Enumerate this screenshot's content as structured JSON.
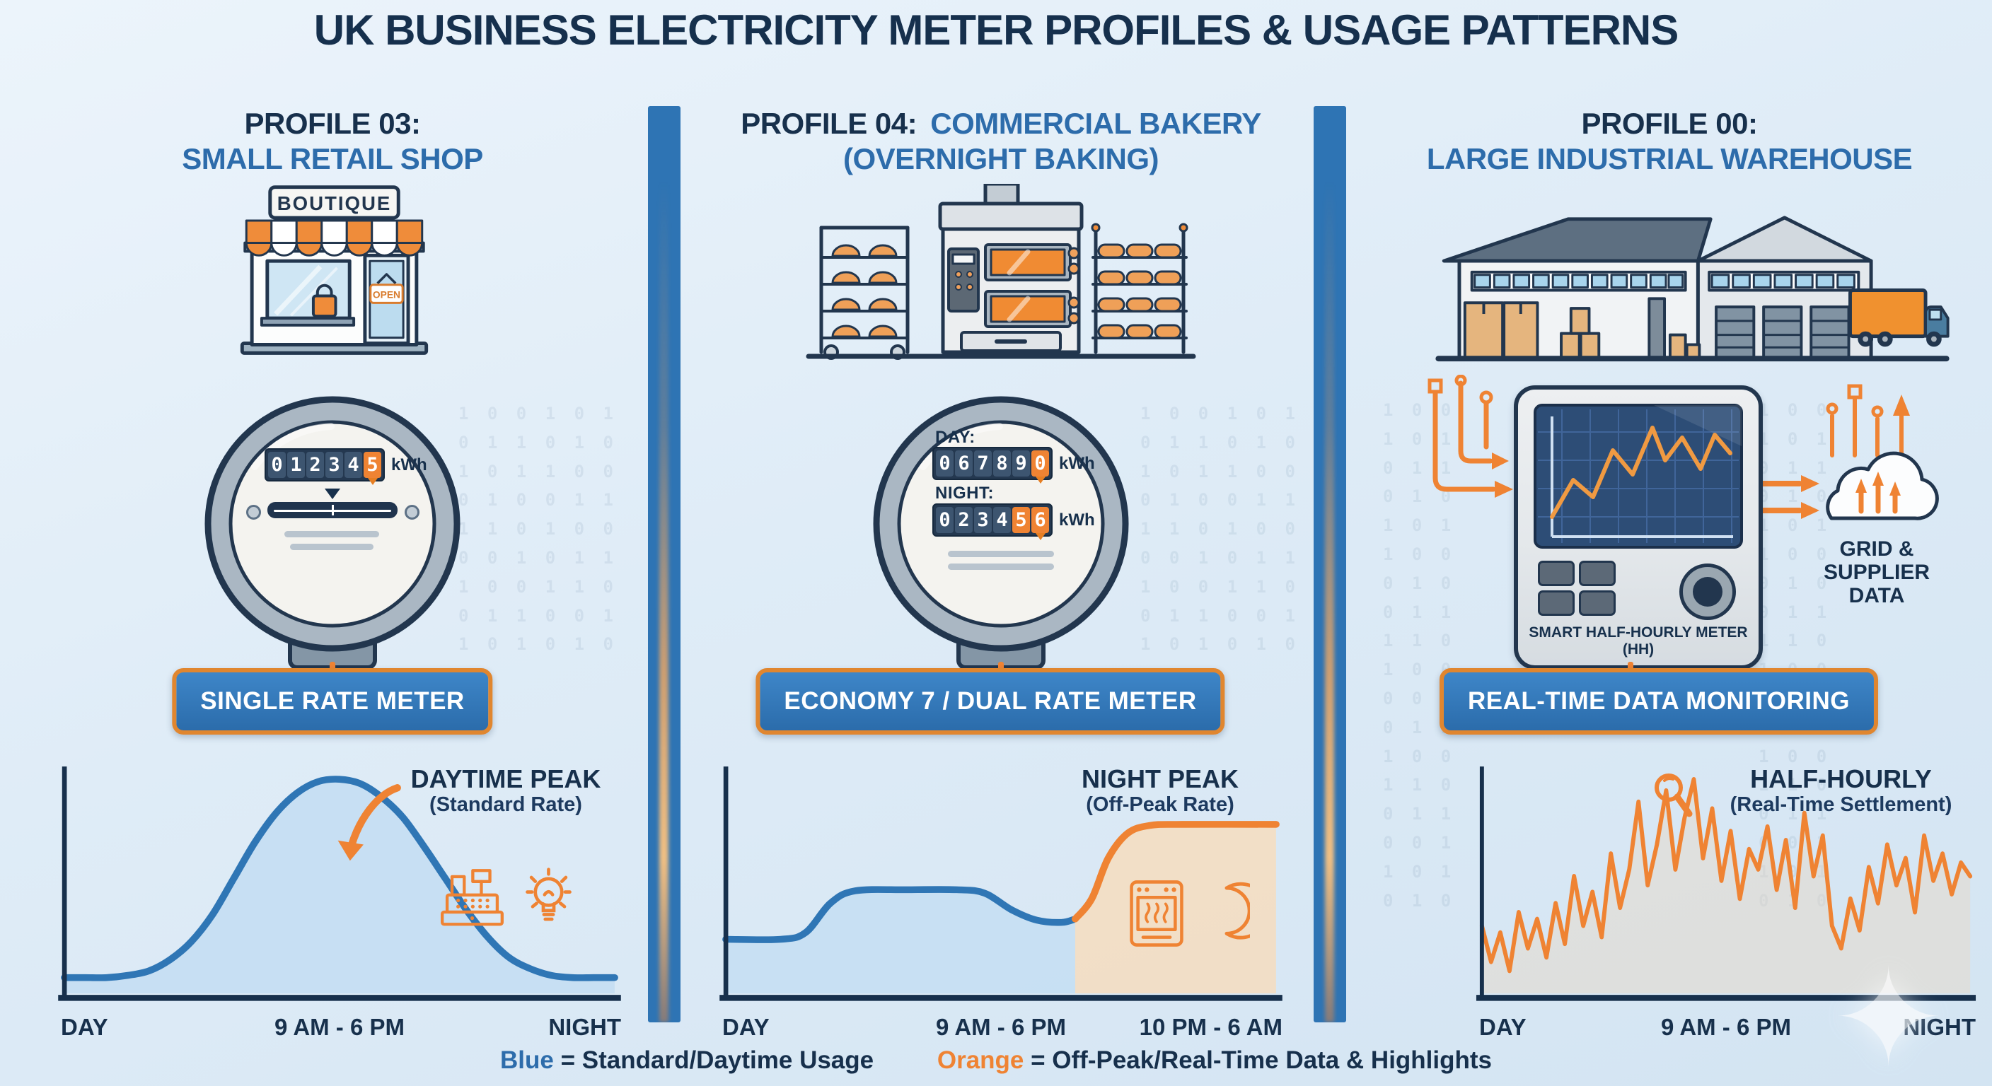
{
  "title": "UK BUSINESS ELECTRICITY METER PROFILES & USAGE PATTERNS",
  "colors": {
    "navy": "#17304c",
    "blue": "#2e74b4",
    "orange": "#ef8333",
    "blue_fill": "#c3ddf2",
    "orange_fill": "#f8dcbc"
  },
  "background": {
    "binary_pattern": "1 0 0 1 0 1\n0 1 1 0 1 0\n1 0 1 1 0 0\n0 1 0 0 1 1\n1 1 0 1 0 0\n0 0 1 0 1 1\n1 0 0 1 1 0\n0 1 1 0 0 1\n1 0 1 0 1 0"
  },
  "watermark": "✦",
  "legend": {
    "blue_word": "Blue",
    "blue_text": "= Standard/Daytime Usage",
    "orange_word": "Orange",
    "orange_text": "= Off-Peak/Real-Time Data & Highlights"
  },
  "columns": [
    {
      "heading": {
        "line1_dark": "PROFILE 03:",
        "line1_blue": "",
        "line2_blue": "SMALL RETAIL SHOP"
      },
      "illustration": {
        "name": "boutique-storefront",
        "sign": "BOUTIQUE",
        "door_sign": "OPEN"
      },
      "meter": {
        "type": "single-rate-analog",
        "unit": "kWh",
        "rows": [
          {
            "label": "",
            "dark_digits": "01234",
            "orange_digits": "5"
          }
        ]
      },
      "badge": "SINGLE RATE METER"
    },
    {
      "heading": {
        "line1_dark": "PROFILE 04:",
        "line1_blue": "COMMERCIAL BAKERY",
        "line2_blue": "(OVERNIGHT BAKING)"
      },
      "illustration": {
        "name": "commercial-bakery-oven"
      },
      "meter": {
        "type": "economy7-dual-rate",
        "unit": "kWh",
        "rows": [
          {
            "label": "DAY:",
            "dark_digits": "06789",
            "orange_digits": "0"
          },
          {
            "label": "NIGHT:",
            "dark_digits": "0234",
            "orange_digits": "56"
          }
        ]
      },
      "badge": "ECONOMY 7 / DUAL RATE METER"
    },
    {
      "heading": {
        "line1_dark": "PROFILE 00:",
        "line1_blue": "",
        "line2_blue": "LARGE INDUSTRIAL WAREHOUSE"
      },
      "illustration": {
        "name": "industrial-warehouse"
      },
      "meter": {
        "type": "smart-half-hourly",
        "label": "SMART HALF-HOURLY METER (HH)"
      },
      "cloud_text": "GRID &\nSUPPLIER\nDATA",
      "badge": "REAL-TIME DATA MONITORING"
    }
  ],
  "chart_data": [
    {
      "type": "area",
      "annotation": "DAYTIME PEAK",
      "annotation_sub": "(Standard Rate)",
      "x_labels": [
        "DAY",
        "9 AM - 6 PM",
        "NIGHT"
      ],
      "ylim": [
        0,
        1
      ],
      "grid": false,
      "series": [
        {
          "name": "Standard/Daytime Usage",
          "color": "#2f76b5",
          "width": 9,
          "smooth": true,
          "fill": "#c3ddf2",
          "fill_opacity": 0.85,
          "values": [
            0.07,
            0.07,
            0.07,
            0.08,
            0.1,
            0.15,
            0.23,
            0.35,
            0.51,
            0.67,
            0.8,
            0.89,
            0.94,
            0.95,
            0.93,
            0.87,
            0.78,
            0.65,
            0.51,
            0.37,
            0.25,
            0.16,
            0.11,
            0.08,
            0.07,
            0.07,
            0.07
          ]
        }
      ]
    },
    {
      "type": "area",
      "annotation": "NIGHT PEAK",
      "annotation_sub": "(Off-Peak Rate)",
      "x_labels": [
        "DAY",
        "9 AM - 6 PM",
        "10 PM - 6 AM"
      ],
      "ylim": [
        0,
        1
      ],
      "grid": false,
      "series": [
        {
          "name": "Daytime usage (standard rate)",
          "color": "#2f76b5",
          "width": 9,
          "smooth": true,
          "fill": "#c3ddf2",
          "fill_opacity": 0.8,
          "points": [
            [
              0,
              0.24
            ],
            [
              0.1,
              0.24
            ],
            [
              0.145,
              0.27
            ],
            [
              0.19,
              0.4
            ],
            [
              0.235,
              0.455
            ],
            [
              0.33,
              0.46
            ],
            [
              0.42,
              0.46
            ],
            [
              0.47,
              0.445
            ],
            [
              0.52,
              0.37
            ],
            [
              0.565,
              0.325
            ],
            [
              0.61,
              0.315
            ],
            [
              0.635,
              0.33
            ]
          ]
        },
        {
          "name": "Night usage (off-peak rate)",
          "color": "#ef8333",
          "width": 9,
          "smooth": true,
          "fill": "#f8dcbc",
          "fill_opacity": 0.8,
          "points": [
            [
              0.635,
              0.33
            ],
            [
              0.665,
              0.42
            ],
            [
              0.695,
              0.6
            ],
            [
              0.73,
              0.71
            ],
            [
              0.77,
              0.745
            ],
            [
              0.83,
              0.75
            ],
            [
              1,
              0.75
            ]
          ]
        }
      ]
    },
    {
      "type": "line",
      "annotation": "HALF-HOURLY",
      "annotation_sub": "(Real-Time Settlement)",
      "x_labels": [
        "DAY",
        "9 AM - 6 PM",
        "NIGHT"
      ],
      "ylim": [
        0,
        1
      ],
      "grid": false,
      "series": [
        {
          "name": "Half-hourly consumption",
          "color": "#ef8333",
          "width": 6,
          "smooth": false,
          "fill": "#e8d8c4",
          "fill_opacity": 0.45,
          "values": [
            0.3,
            0.14,
            0.27,
            0.1,
            0.36,
            0.2,
            0.33,
            0.16,
            0.4,
            0.22,
            0.52,
            0.3,
            0.45,
            0.25,
            0.62,
            0.38,
            0.55,
            0.85,
            0.48,
            0.66,
            0.9,
            0.55,
            0.78,
            0.95,
            0.6,
            0.82,
            0.5,
            0.72,
            0.42,
            0.64,
            0.55,
            0.74,
            0.46,
            0.68,
            0.38,
            0.8,
            0.52,
            0.7,
            0.3,
            0.2,
            0.42,
            0.28,
            0.56,
            0.4,
            0.66,
            0.48,
            0.6,
            0.36,
            0.7,
            0.5,
            0.62,
            0.44,
            0.58,
            0.52
          ]
        }
      ]
    }
  ]
}
